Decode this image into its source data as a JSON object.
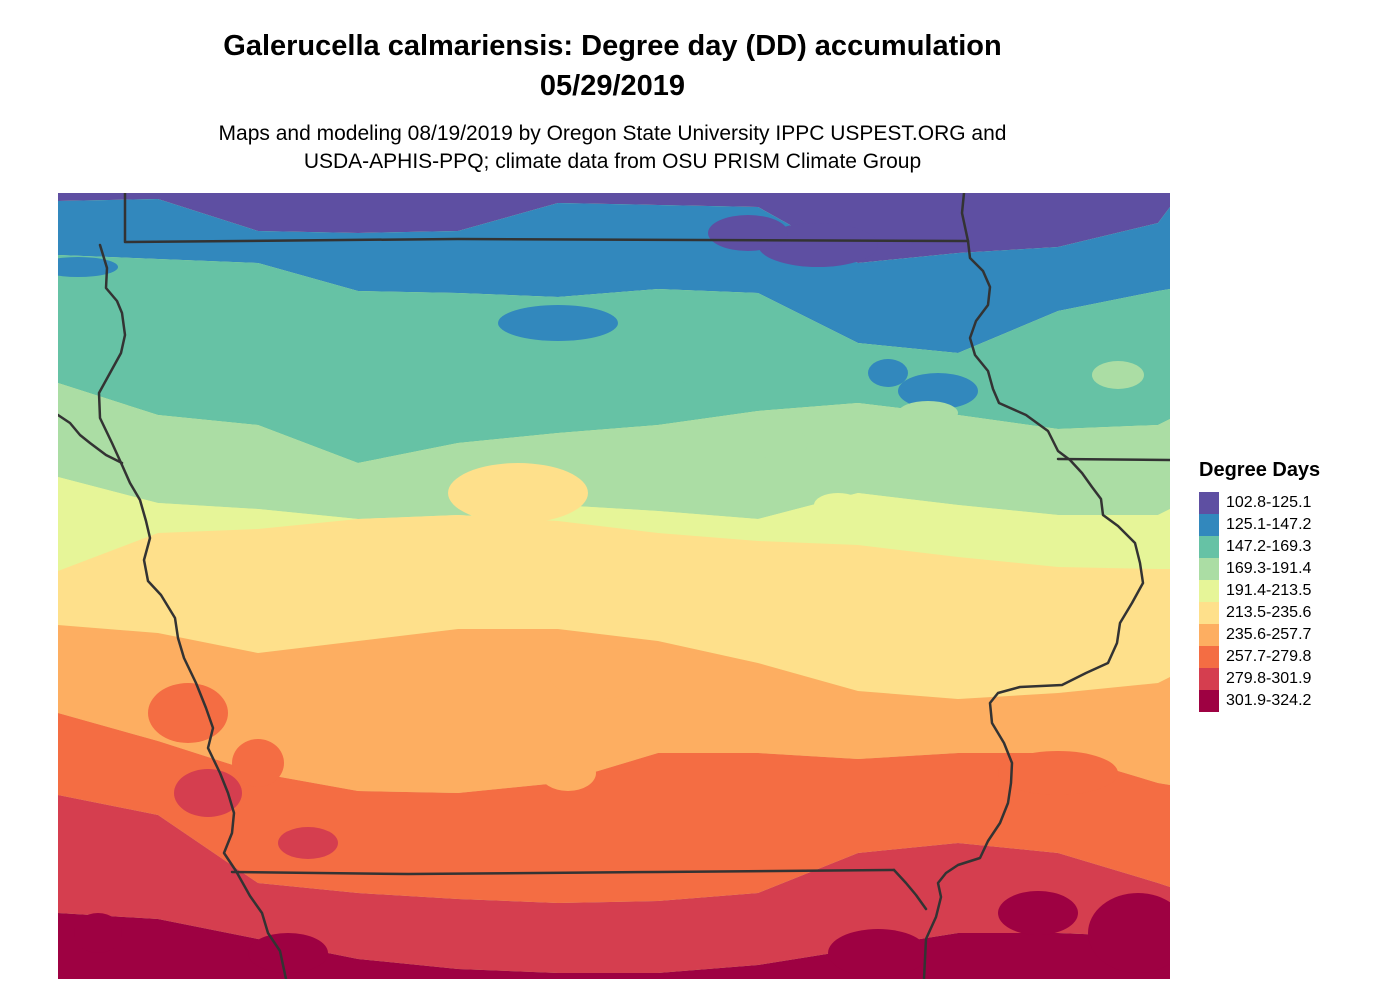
{
  "title": {
    "line1": "Galerucella calmariensis: Degree day (DD) accumulation",
    "line2": "05/29/2019"
  },
  "subtitle": {
    "line1": "Maps and modeling 08/19/2019 by Oregon State University IPPC USPEST.ORG and",
    "line2": "USDA-APHIS-PPQ; climate data from OSU PRISM Climate Group"
  },
  "legend": {
    "title": "Degree Days",
    "items": [
      {
        "label": "102.8-125.1",
        "color": "#5e4fa2"
      },
      {
        "label": "125.1-147.2",
        "color": "#3288bd"
      },
      {
        "label": "147.2-169.3",
        "color": "#66c2a5"
      },
      {
        "label": "169.3-191.4",
        "color": "#abdda4"
      },
      {
        "label": "191.4-213.5",
        "color": "#e6f598"
      },
      {
        "label": "213.5-235.6",
        "color": "#fee08b"
      },
      {
        "label": "235.6-257.7",
        "color": "#fdae61"
      },
      {
        "label": "257.7-279.8",
        "color": "#f46d43"
      },
      {
        "label": "279.8-301.9",
        "color": "#d53e4f"
      },
      {
        "label": "301.9-324.2",
        "color": "#9e0142"
      }
    ]
  },
  "map": {
    "region": "Iowa and surrounding area",
    "border_color": "#333333",
    "pattern": "degree days increase from north (102.8-125.1) to south (301.9-324.2)"
  }
}
